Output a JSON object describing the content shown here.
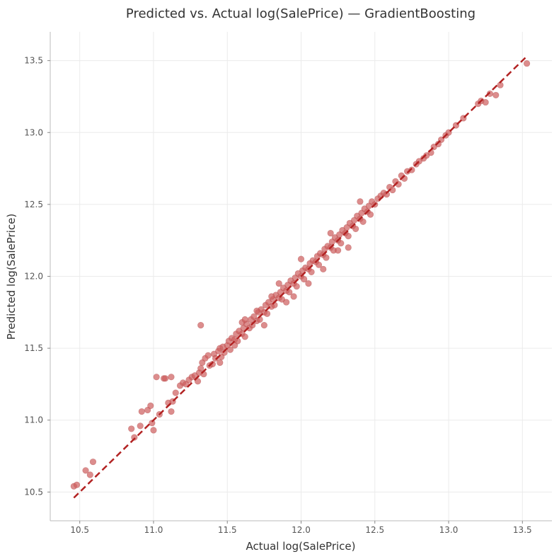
{
  "chart_data": {
    "type": "scatter",
    "title": "Predicted vs. Actual log(SalePrice) — GradientBoosting",
    "xlabel": "Actual log(SalePrice)",
    "ylabel": "Predicted log(SalePrice)",
    "xlim": [
      10.3,
      13.7
    ],
    "ylim": [
      10.3,
      13.7
    ],
    "xticks": [
      "10.5",
      "11.0",
      "11.5",
      "12.0",
      "12.5",
      "13.0",
      "13.5"
    ],
    "yticks": [
      "10.5",
      "11.0",
      "11.5",
      "12.0",
      "12.5",
      "13.0",
      "13.5"
    ],
    "grid": true,
    "point_color": "#cd5c5c",
    "line_color": "#b22222",
    "reference_line": {
      "x": [
        10.46,
        13.53
      ],
      "y": [
        10.46,
        13.53
      ],
      "style": "dashed"
    },
    "points": {
      "x": [
        10.46,
        10.48,
        10.54,
        10.57,
        10.59,
        10.85,
        10.87,
        10.91,
        10.92,
        10.96,
        10.98,
        10.99,
        11.0,
        11.02,
        11.04,
        11.07,
        11.08,
        11.1,
        11.12,
        11.13,
        11.15,
        11.18,
        11.2,
        11.22,
        11.24,
        11.26,
        11.28,
        11.3,
        11.31,
        11.32,
        11.33,
        11.34,
        11.35,
        11.37,
        11.38,
        11.4,
        11.41,
        11.42,
        11.44,
        11.45,
        11.46,
        11.47,
        11.48,
        11.5,
        11.51,
        11.52,
        11.53,
        11.55,
        11.56,
        11.57,
        11.58,
        11.6,
        11.61,
        11.62,
        11.63,
        11.65,
        11.66,
        11.67,
        11.68,
        11.7,
        11.71,
        11.72,
        11.73,
        11.75,
        11.76,
        11.77,
        11.78,
        11.8,
        11.81,
        11.82,
        11.83,
        11.85,
        11.86,
        11.87,
        11.88,
        11.9,
        11.91,
        11.92,
        11.93,
        11.95,
        11.96,
        11.97,
        11.98,
        12.0,
        12.01,
        12.02,
        12.03,
        12.05,
        12.06,
        12.07,
        12.08,
        12.1,
        12.11,
        12.12,
        12.13,
        12.15,
        12.16,
        12.17,
        12.18,
        12.2,
        12.21,
        12.22,
        12.23,
        12.25,
        12.26,
        12.27,
        12.28,
        12.3,
        12.31,
        12.32,
        12.33,
        12.35,
        12.36,
        12.37,
        12.38,
        12.4,
        12.41,
        12.42,
        12.43,
        12.45,
        12.46,
        12.47,
        12.48,
        12.5,
        12.52,
        12.54,
        12.56,
        12.58,
        12.6,
        12.62,
        12.64,
        12.66,
        12.68,
        12.7,
        12.72,
        12.75,
        12.78,
        12.8,
        12.83,
        12.85,
        12.88,
        12.9,
        12.93,
        12.95,
        12.98,
        13.0,
        13.05,
        13.1,
        13.2,
        13.22,
        13.25,
        13.28,
        13.32,
        13.35,
        13.53,
        11.32,
        11.12,
        11.7,
        11.6,
        11.8,
        12.0,
        12.2,
        12.4,
        11.85,
        11.55,
        11.62,
        12.15,
        12.32,
        11.9,
        11.95,
        12.05,
        11.45,
        11.75,
        12.25
      ],
      "y": [
        10.54,
        10.55,
        10.65,
        10.62,
        10.71,
        10.94,
        10.88,
        10.96,
        11.06,
        11.07,
        11.1,
        10.98,
        10.93,
        11.3,
        11.04,
        11.29,
        11.29,
        11.12,
        11.3,
        11.13,
        11.19,
        11.24,
        11.26,
        11.25,
        11.28,
        11.3,
        11.31,
        11.27,
        11.33,
        11.36,
        11.4,
        11.32,
        11.43,
        11.45,
        11.38,
        11.39,
        11.46,
        11.43,
        11.48,
        11.5,
        11.44,
        11.51,
        11.47,
        11.52,
        11.55,
        11.49,
        11.57,
        11.56,
        11.6,
        11.55,
        11.62,
        11.6,
        11.64,
        11.58,
        11.67,
        11.64,
        11.7,
        11.66,
        11.72,
        11.69,
        11.75,
        11.7,
        11.77,
        11.75,
        11.8,
        11.74,
        11.82,
        11.79,
        11.84,
        11.8,
        11.87,
        11.85,
        11.89,
        11.84,
        11.92,
        11.9,
        11.94,
        11.89,
        11.97,
        11.95,
        11.99,
        11.93,
        12.02,
        12.0,
        12.04,
        11.98,
        12.06,
        12.05,
        12.09,
        12.03,
        12.11,
        12.1,
        12.14,
        12.08,
        12.16,
        12.15,
        12.19,
        12.13,
        12.21,
        12.2,
        12.24,
        12.18,
        12.27,
        12.25,
        12.29,
        12.23,
        12.32,
        12.3,
        12.34,
        12.28,
        12.37,
        12.35,
        12.39,
        12.33,
        12.42,
        12.4,
        12.44,
        12.38,
        12.47,
        12.45,
        12.49,
        12.43,
        12.52,
        12.5,
        12.54,
        12.56,
        12.58,
        12.57,
        12.62,
        12.6,
        12.66,
        12.64,
        12.7,
        12.68,
        12.73,
        12.74,
        12.78,
        12.8,
        12.82,
        12.84,
        12.86,
        12.9,
        12.92,
        12.95,
        12.98,
        13.0,
        13.05,
        13.1,
        13.2,
        13.22,
        13.21,
        13.27,
        13.26,
        13.33,
        13.48,
        11.66,
        11.06,
        11.76,
        11.68,
        11.86,
        12.12,
        12.3,
        12.52,
        11.95,
        11.52,
        11.7,
        12.05,
        12.2,
        11.82,
        11.86,
        11.95,
        11.4,
        11.66,
        12.18
      ]
    }
  }
}
